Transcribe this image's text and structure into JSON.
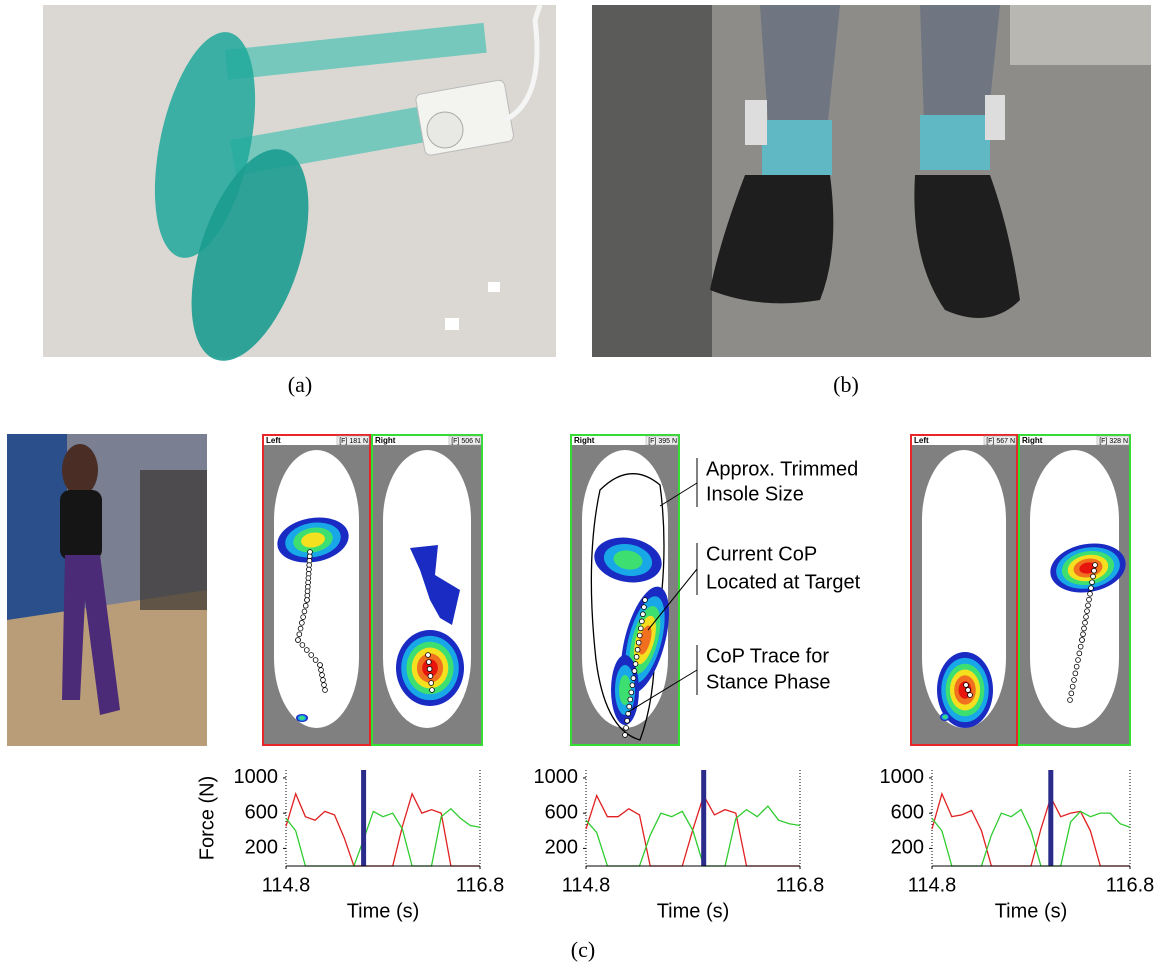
{
  "captions": [
    "(a)",
    "(b)",
    "(c)"
  ],
  "insole_views": [
    {
      "panels": [
        {
          "side": "Left",
          "force": "[F] 181 N",
          "border": "#e8262a"
        },
        {
          "side": "Right",
          "force": "[F] 506 N",
          "border": "#33dd33"
        }
      ]
    },
    {
      "panels": [
        {
          "side": "Right",
          "force": "[F] 395 N",
          "border": "#33dd33"
        }
      ],
      "annotations": [
        [
          "Approx. Trimmed",
          "Insole Size"
        ],
        [
          "Current CoP",
          "Located at Target"
        ],
        [
          "CoP Trace for",
          "Stance Phase"
        ]
      ]
    },
    {
      "panels": [
        {
          "side": "Left",
          "force": "[F] 567 N",
          "border": "#e8262a"
        },
        {
          "side": "Right",
          "force": "[F] 328 N",
          "border": "#33dd33"
        }
      ]
    }
  ],
  "chart_data": [
    {
      "type": "line",
      "ylabel": "Force (N)",
      "xlabel": "Time (s)",
      "xlim": [
        114.8,
        116.8
      ],
      "xticks": [
        114.8,
        116.8
      ],
      "ylim": [
        0,
        1090
      ],
      "yticks": [
        200,
        600,
        1000
      ],
      "x": [
        114.8,
        114.9,
        115.0,
        115.1,
        115.2,
        115.3,
        115.4,
        115.5,
        115.6,
        115.7,
        115.8,
        115.9,
        116.0,
        116.1,
        116.2,
        116.3,
        116.4,
        116.5,
        116.6,
        116.7,
        116.8
      ],
      "series": [
        {
          "color": "#e02020",
          "values": [
            450,
            820,
            560,
            520,
            620,
            580,
            320,
            0,
            0,
            0,
            0,
            0,
            450,
            820,
            600,
            640,
            600,
            0,
            0,
            0,
            0
          ]
        },
        {
          "color": "#30cc30",
          "values": [
            540,
            400,
            0,
            0,
            0,
            0,
            0,
            0,
            300,
            620,
            560,
            600,
            420,
            0,
            0,
            0,
            560,
            650,
            540,
            460,
            440
          ]
        }
      ],
      "marker": {
        "x": 115.6,
        "color": "#2b2b8c"
      }
    },
    {
      "type": "line",
      "xlabel": "Time (s)",
      "xlim": [
        114.8,
        116.8
      ],
      "xticks": [
        114.8,
        116.8
      ],
      "ylim": [
        0,
        1090
      ],
      "yticks": [
        200,
        600,
        1000
      ],
      "x": [
        114.8,
        114.9,
        115.0,
        115.1,
        115.2,
        115.3,
        115.4,
        115.5,
        115.6,
        115.7,
        115.8,
        115.9,
        116.0,
        116.1,
        116.2,
        116.3,
        116.4,
        116.5,
        116.6,
        116.7,
        116.8
      ],
      "series": [
        {
          "color": "#e02020",
          "values": [
            420,
            800,
            560,
            560,
            650,
            580,
            0,
            0,
            0,
            0,
            420,
            800,
            580,
            640,
            600,
            0,
            0,
            0,
            0,
            0,
            0
          ]
        },
        {
          "color": "#30cc30",
          "values": [
            520,
            380,
            0,
            0,
            0,
            0,
            350,
            600,
            560,
            620,
            400,
            0,
            0,
            0,
            540,
            640,
            560,
            680,
            520,
            480,
            460
          ]
        }
      ],
      "marker": {
        "x": 115.9,
        "color": "#2b2b8c"
      }
    },
    {
      "type": "line",
      "xlabel": "Time (s)",
      "xlim": [
        114.8,
        116.8
      ],
      "xticks": [
        114.8,
        116.8
      ],
      "ylim": [
        0,
        1090
      ],
      "yticks": [
        200,
        600,
        1000
      ],
      "x": [
        114.8,
        114.9,
        115.0,
        115.1,
        115.2,
        115.3,
        115.4,
        115.5,
        115.6,
        115.7,
        115.8,
        115.9,
        116.0,
        116.1,
        116.2,
        116.3,
        116.4,
        116.5,
        116.6,
        116.7,
        116.8
      ],
      "series": [
        {
          "color": "#e02020",
          "values": [
            420,
            820,
            560,
            580,
            630,
            400,
            0,
            0,
            0,
            0,
            0,
            420,
            780,
            560,
            600,
            620,
            400,
            0,
            0,
            0,
            0
          ]
        },
        {
          "color": "#30cc30",
          "values": [
            540,
            400,
            0,
            0,
            0,
            0,
            350,
            600,
            560,
            640,
            400,
            0,
            0,
            0,
            500,
            620,
            560,
            600,
            600,
            480,
            440
          ]
        }
      ],
      "marker": {
        "x": 116.0,
        "color": "#2b2b8c"
      }
    }
  ]
}
